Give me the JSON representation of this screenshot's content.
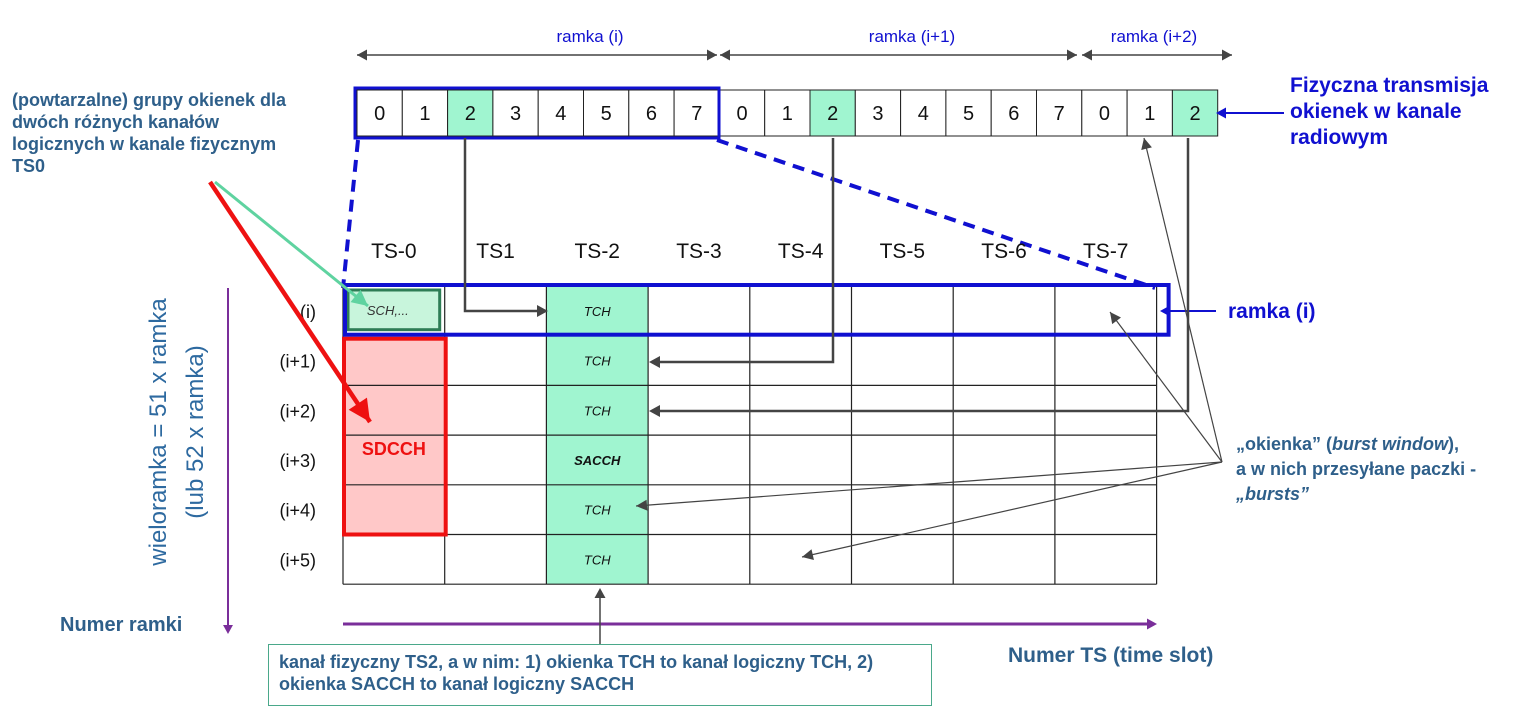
{
  "frame_labels": [
    "ramka (i)",
    "ramka (i+1)",
    "ramka (i+2)"
  ],
  "transmission": {
    "slots": [
      "0",
      "1",
      "2",
      "3",
      "4",
      "5",
      "6",
      "7",
      "0",
      "1",
      "2",
      "3",
      "4",
      "5",
      "6",
      "7",
      "0",
      "1",
      "2"
    ],
    "highlighted_indices": [
      2,
      10,
      18
    ]
  },
  "transmission_label": "Fizyczna transmisja okienek w kanale radiowym",
  "ts_headers": [
    "TS-0",
    "TS1",
    "TS-2",
    "TS-3",
    "TS-4",
    "TS-5",
    "TS-6",
    "TS-7"
  ],
  "row_labels": [
    "(i)",
    "(i+1)",
    "(i+2)",
    "(i+3)",
    "(i+4)",
    "(i+5)"
  ],
  "cells": {
    "sch": "SCH,...",
    "tch": "TCH",
    "sacch": "SACCH",
    "sdcch": "SDCCH"
  },
  "groups_note": "(powtarzalne) grupy okienek dla dwóch różnych kanałów logicznych w kanale fizycznym TS0",
  "frame_i_label": "ramka (i)",
  "multiframe_label": "wieloramka = 51 x ramka",
  "multiframe_sublabel": "(lub 52 x ramka)",
  "frame_number_label": "Numer ramki",
  "ts_number_label": "Numer TS (time slot)",
  "burst_label": {
    "line1_pre": "„okienka” (",
    "line1_em": "burst window",
    "line1_post": "),",
    "line2": "a w nich przesyłane paczki -",
    "line3": "„bursts”"
  },
  "ts2_note": "kanał fizyczny TS2, a w nim: 1) okienka TCH to kanał logiczny TCH, 2) okienka SACCH to kanał logiczny SACCH",
  "colors": {
    "accent_blue": "#1010d0",
    "text_blue": "#2e5f8a",
    "slot_green": "#a0f5d0",
    "sdcch_red": "#ee1111",
    "sdcch_fill": "#ffc8c8",
    "sch_border": "#2e7d55",
    "purple": "#7a2e9a",
    "arrow_gray": "#444444",
    "note_border": "#4aa88a"
  }
}
